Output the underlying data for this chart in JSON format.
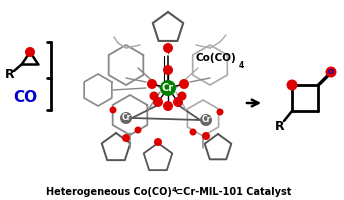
{
  "epoxide_color": "#dd0000",
  "co_color": "#0000cc",
  "cr_color": "#008000",
  "mof_color": "#888888",
  "mof_dark": "#555555",
  "mof_light": "#aaaaaa",
  "red_o": "#dd0000",
  "background": "#ffffff",
  "title_main": "Heterogeneous Co(CO)",
  "title_sub": "4",
  "title_rest": "⊂Cr-MIL-101 Catalyst",
  "arrow_color": "#000000"
}
